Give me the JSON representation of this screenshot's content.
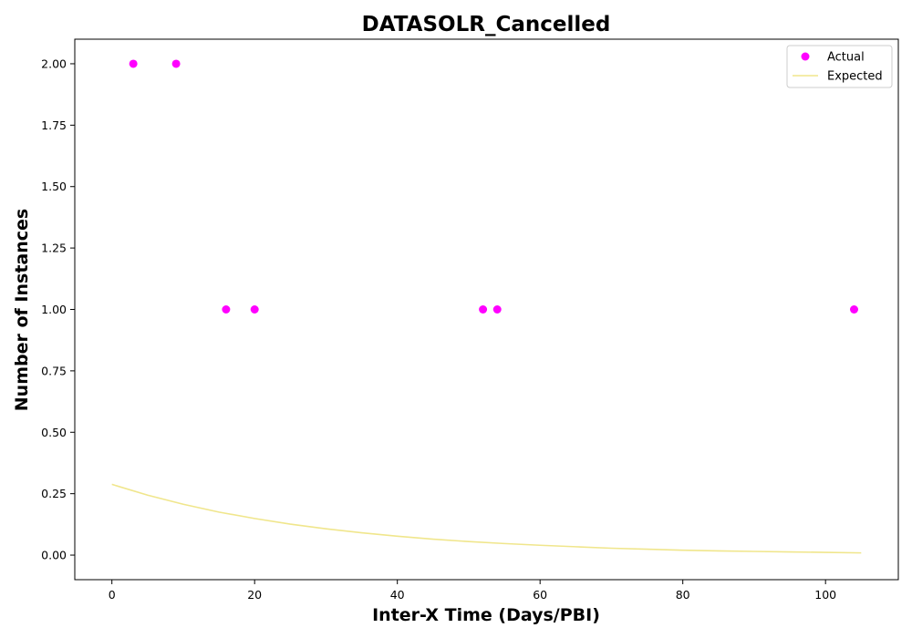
{
  "chart_data": {
    "type": "scatter",
    "title": "DATASOLR_Cancelled",
    "xlabel": "Inter-X Time (Days/PBI)",
    "ylabel": "Number of Instances",
    "xlim": [
      -5.2,
      110.2
    ],
    "ylim": [
      -0.1,
      2.1
    ],
    "xticks": [
      0,
      20,
      40,
      60,
      80,
      100
    ],
    "yticks": [
      0.0,
      0.25,
      0.5,
      0.75,
      1.0,
      1.25,
      1.5,
      1.75,
      2.0
    ],
    "xtick_labels": [
      "0",
      "20",
      "40",
      "60",
      "80",
      "100"
    ],
    "ytick_labels": [
      "0.00",
      "0.25",
      "0.50",
      "0.75",
      "1.00",
      "1.25",
      "1.50",
      "1.75",
      "2.00"
    ],
    "grid": false,
    "legend_position": "top-right",
    "series": [
      {
        "name": "Actual",
        "kind": "scatter",
        "color": "#ff00ff",
        "points": [
          [
            3,
            2
          ],
          [
            9,
            2
          ],
          [
            16,
            1
          ],
          [
            20,
            1
          ],
          [
            52,
            1
          ],
          [
            54,
            1
          ],
          [
            104,
            1
          ]
        ]
      },
      {
        "name": "Expected",
        "kind": "line",
        "color": "#f0e68c",
        "points": [
          [
            0,
            0.288
          ],
          [
            5,
            0.244
          ],
          [
            10,
            0.207
          ],
          [
            15,
            0.175
          ],
          [
            20,
            0.149
          ],
          [
            25,
            0.126
          ],
          [
            30,
            0.107
          ],
          [
            35,
            0.091
          ],
          [
            40,
            0.077
          ],
          [
            45,
            0.065
          ],
          [
            50,
            0.055
          ],
          [
            55,
            0.047
          ],
          [
            60,
            0.04
          ],
          [
            65,
            0.034
          ],
          [
            70,
            0.028
          ],
          [
            75,
            0.024
          ],
          [
            80,
            0.02
          ],
          [
            85,
            0.017
          ],
          [
            90,
            0.015
          ],
          [
            95,
            0.013
          ],
          [
            100,
            0.011
          ],
          [
            105,
            0.009
          ]
        ]
      }
    ]
  }
}
